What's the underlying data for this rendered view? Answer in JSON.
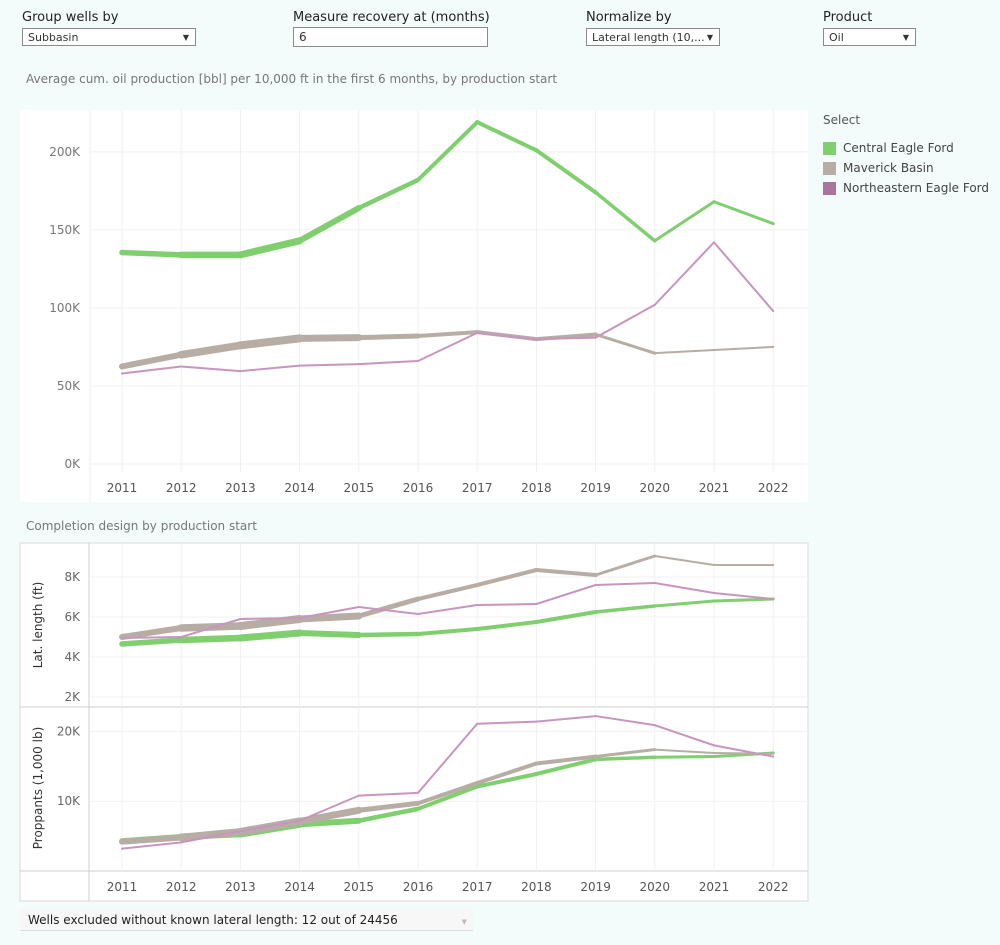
{
  "controls": {
    "group_by": {
      "label": "Group wells by",
      "value": "Subbasin"
    },
    "recovery": {
      "label": "Measure recovery at (months)",
      "value": "6"
    },
    "normalize": {
      "label": "Normalize by",
      "value": "Lateral length (10,..."
    },
    "product": {
      "label": "Product",
      "value": "Oil"
    }
  },
  "chart_data": [
    {
      "type": "line",
      "title": "Average cum. oil production [bbl] per 10,000 ft in the first 6 months, by production start",
      "x": [
        2011,
        2012,
        2013,
        2014,
        2015,
        2016,
        2017,
        2018,
        2019,
        2020,
        2021,
        2022
      ],
      "ylim": [
        0,
        230000
      ],
      "yticks": [
        0,
        50000,
        100000,
        150000,
        200000
      ],
      "ytick_labels": [
        "0K",
        "50K",
        "100K",
        "150K",
        "200K"
      ],
      "grid": true,
      "series": [
        {
          "name": "Central Eagle Ford",
          "color": "#7fcf6f",
          "values": [
            135500,
            134000,
            134000,
            143000,
            164000,
            182000,
            219000,
            201000,
            174000,
            143000,
            168000,
            154000
          ],
          "widths": [
            5,
            6,
            7,
            7,
            5,
            4,
            4,
            4,
            4,
            3,
            3,
            3
          ]
        },
        {
          "name": "Maverick Basin",
          "color": "#b7ada5",
          "values": [
            62500,
            70000,
            76000,
            80500,
            81000,
            82000,
            84500,
            80000,
            83000,
            71000,
            73000,
            75000
          ],
          "widths": [
            5,
            7,
            8,
            8,
            6,
            4,
            4,
            4,
            4,
            2,
            2,
            2
          ]
        },
        {
          "name": "Northeastern Eagle Ford",
          "color": "#c895bf",
          "values": [
            58000,
            62500,
            59500,
            63000,
            64000,
            66000,
            84000,
            80000,
            81000,
            102000,
            142000,
            98000
          ],
          "widths": [
            2,
            2,
            2,
            2,
            2,
            2,
            2,
            2,
            2,
            2,
            2,
            2
          ]
        }
      ]
    },
    {
      "type": "line",
      "title": "Completion design by production start",
      "panels": [
        {
          "ylabel": "Lat. length (ft)",
          "ylim": [
            1500,
            9700
          ],
          "yticks": [
            2000,
            4000,
            6000,
            8000
          ],
          "ytick_labels": [
            "2K",
            "4K",
            "6K",
            "8K"
          ],
          "series": [
            {
              "name": "Central Eagle Ford",
              "color": "#7fcf6f",
              "values": [
                4650,
                4850,
                4950,
                5200,
                5100,
                5150,
                5400,
                5750,
                6250,
                6550,
                6800,
                6900
              ],
              "widths": [
                5,
                6,
                7,
                7,
                5,
                4,
                4,
                4,
                4,
                3,
                3,
                3
              ]
            },
            {
              "name": "Maverick Basin",
              "color": "#b7ada5",
              "values": [
                5000,
                5450,
                5550,
                5900,
                6050,
                6900,
                7600,
                8350,
                8100,
                9050,
                8600,
                8600
              ],
              "widths": [
                5,
                7,
                8,
                8,
                6,
                4,
                4,
                4,
                4,
                2,
                2,
                2
              ]
            },
            {
              "name": "Northeastern Eagle Ford",
              "color": "#c895bf",
              "values": [
                4950,
                5000,
                5900,
                5950,
                6500,
                6150,
                6600,
                6650,
                7600,
                7700,
                7200,
                6900
              ],
              "widths": [
                2,
                2,
                2,
                2,
                2,
                2,
                2,
                2,
                2,
                2,
                2,
                2
              ]
            }
          ]
        },
        {
          "ylabel": "Proppants (1,000 lb)",
          "ylim": [
            0,
            23500
          ],
          "yticks": [
            10000,
            20000
          ],
          "ytick_labels": [
            "10K",
            "20K"
          ],
          "series": [
            {
              "name": "Central Eagle Ford",
              "color": "#7fcf6f",
              "values": [
                4300,
                4900,
                5300,
                6700,
                7200,
                8900,
                12100,
                13900,
                16000,
                16300,
                16400,
                16900
              ],
              "widths": [
                5,
                6,
                7,
                7,
                5,
                4,
                4,
                4,
                4,
                3,
                3,
                3
              ]
            },
            {
              "name": "Maverick Basin",
              "color": "#b7ada5",
              "values": [
                4200,
                4800,
                5600,
                7100,
                8700,
                9700,
                12600,
                15400,
                16400,
                17400,
                16900,
                16800
              ],
              "widths": [
                5,
                7,
                8,
                8,
                6,
                4,
                4,
                4,
                4,
                2,
                2,
                2
              ]
            },
            {
              "name": "Northeastern Eagle Ford",
              "color": "#c895bf",
              "values": [
                3200,
                4100,
                5700,
                7200,
                10800,
                11200,
                21100,
                21400,
                22200,
                20900,
                18000,
                16400
              ],
              "widths": [
                2,
                2,
                2,
                2,
                2,
                2,
                2,
                2,
                2,
                2,
                2,
                2
              ]
            }
          ]
        }
      ],
      "x": [
        2011,
        2012,
        2013,
        2014,
        2015,
        2016,
        2017,
        2018,
        2019,
        2020,
        2021,
        2022
      ]
    }
  ],
  "legend": {
    "title": "Select",
    "items": [
      {
        "label": "Central Eagle Ford",
        "color": "#7fcf6f"
      },
      {
        "label": "Maverick Basin",
        "color": "#b7ada5"
      },
      {
        "label": "Northeastern Eagle Ford",
        "color": "#a9749e"
      }
    ]
  },
  "footer": {
    "text": "Wells excluded without known lateral length: 12 out of 24456"
  }
}
